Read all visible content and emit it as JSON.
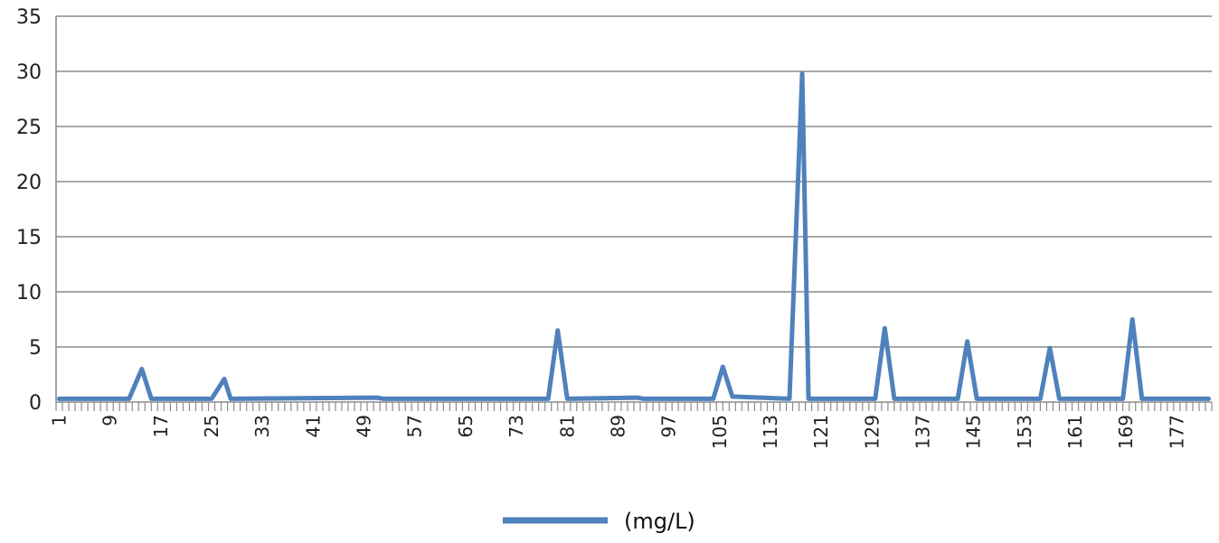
{
  "chart_data": {
    "type": "line",
    "title": "",
    "xlabel": "",
    "ylabel": "",
    "ylim": [
      0,
      35
    ],
    "yticks": [
      0,
      5,
      10,
      15,
      20,
      25,
      30,
      35
    ],
    "x_range": [
      1,
      182
    ],
    "xtick_labels": [
      "1",
      "9",
      "17",
      "25",
      "33",
      "41",
      "49",
      "57",
      "65",
      "73",
      "81",
      "89",
      "97",
      "105",
      "113",
      "121",
      "129",
      "137",
      "145",
      "153",
      "161",
      "169",
      "177"
    ],
    "grid": true,
    "legend_position": "bottom",
    "series": [
      {
        "name": "(mg/L)",
        "color": "#4f81bd",
        "baseline": 0.3,
        "points": [
          {
            "x": 12,
            "y": 0.3
          },
          {
            "x": 14,
            "y": 3.0
          },
          {
            "x": 15.5,
            "y": 0.3
          },
          {
            "x": 25,
            "y": 0.3
          },
          {
            "x": 27,
            "y": 2.1
          },
          {
            "x": 28,
            "y": 0.3
          },
          {
            "x": 51,
            "y": 0.4
          },
          {
            "x": 52,
            "y": 0.3
          },
          {
            "x": 78,
            "y": 0.3
          },
          {
            "x": 79.5,
            "y": 6.5
          },
          {
            "x": 81,
            "y": 0.3
          },
          {
            "x": 92,
            "y": 0.4
          },
          {
            "x": 93,
            "y": 0.3
          },
          {
            "x": 104,
            "y": 0.3
          },
          {
            "x": 105.5,
            "y": 3.2
          },
          {
            "x": 107,
            "y": 0.5
          },
          {
            "x": 116,
            "y": 0.3
          },
          {
            "x": 118,
            "y": 29.8
          },
          {
            "x": 119,
            "y": 0.3
          },
          {
            "x": 129.5,
            "y": 0.3
          },
          {
            "x": 131,
            "y": 6.7
          },
          {
            "x": 132.5,
            "y": 0.3
          },
          {
            "x": 142.5,
            "y": 0.3
          },
          {
            "x": 144,
            "y": 5.5
          },
          {
            "x": 145.5,
            "y": 0.3
          },
          {
            "x": 155.5,
            "y": 0.3
          },
          {
            "x": 157,
            "y": 4.9
          },
          {
            "x": 158.5,
            "y": 0.3
          },
          {
            "x": 168.5,
            "y": 0.3
          },
          {
            "x": 170,
            "y": 7.5
          },
          {
            "x": 171.5,
            "y": 0.3
          }
        ]
      }
    ]
  }
}
